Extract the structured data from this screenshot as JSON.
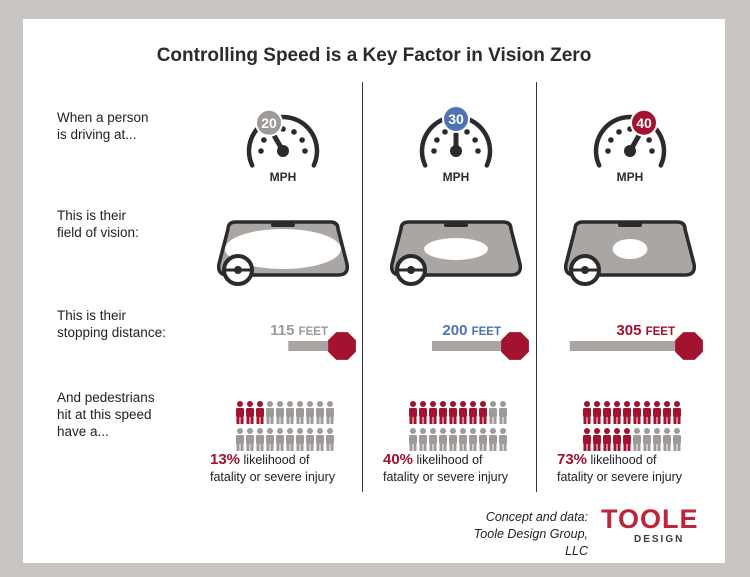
{
  "title": "Controlling Speed is a Key Factor in Vision Zero",
  "row_labels": {
    "speed": [
      "When a person",
      "is driving at..."
    ],
    "vision": [
      "This is their",
      "field of vision:"
    ],
    "stopping": [
      "This is their",
      "stopping distance:"
    ],
    "pedestrians": [
      "And pedestrians",
      "hit at this speed",
      "have a..."
    ]
  },
  "mph_label": "MPH",
  "feet_unit": "FEET",
  "likelihood_text": [
    "likelihood of",
    "fatality or severe injury"
  ],
  "credit": [
    "Concept and data:",
    "Toole Design Group, LLC"
  ],
  "logo": {
    "top": "TOOLE",
    "bottom": "DESIGN"
  },
  "colors": {
    "gray": "#9e9a98",
    "red": "#a3122e",
    "blue": "#4e73b4",
    "dark": "#2b2b2b"
  },
  "chart_data": {
    "type": "table",
    "columns": [
      {
        "speed": 20,
        "badge_color": "#9e9a98",
        "stopping_distance_feet": 115,
        "distance_color": "#9e9a98",
        "fatality_percent": 13,
        "red_figures": 3,
        "vision_fraction": 1.0
      },
      {
        "speed": 30,
        "badge_color": "#4e73b4",
        "stopping_distance_feet": 200,
        "distance_color": "#4e73b4",
        "fatality_percent": 40,
        "red_figures": 8,
        "vision_fraction": 0.55
      },
      {
        "speed": 40,
        "badge_color": "#a3122e",
        "stopping_distance_feet": 305,
        "distance_color": "#a3122e",
        "fatality_percent": 73,
        "red_figures": 15,
        "vision_fraction": 0.3
      }
    ],
    "figures_per_column": 20
  }
}
